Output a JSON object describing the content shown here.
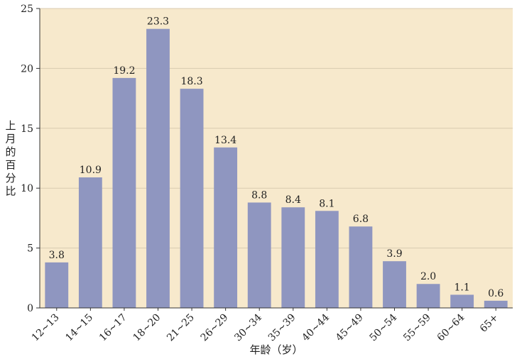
{
  "colors": {
    "plot_background": "#f7e9cc",
    "bar": "#8f96c0",
    "grid": "#d9cbb0",
    "axis": "#333333"
  },
  "chart_data": {
    "type": "bar",
    "categories": [
      "12~13",
      "14~15",
      "16~17",
      "18~20",
      "21~25",
      "26~29",
      "30~34",
      "35~39",
      "40~44",
      "45~49",
      "50~54",
      "55~59",
      "60~64",
      "65+"
    ],
    "values": [
      3.8,
      10.9,
      19.2,
      23.3,
      18.3,
      13.4,
      8.8,
      8.4,
      8.1,
      6.8,
      3.9,
      2.0,
      1.1,
      0.6
    ],
    "data_labels": [
      "3.8",
      "10.9",
      "19.2",
      "23.3",
      "18.3",
      "13.4",
      "8.8",
      "8.4",
      "8.1",
      "6.8",
      "3.9",
      "2.0",
      "1.1",
      "0.6"
    ],
    "xlabel": "年龄（岁）",
    "ylabel": "上月的百分比",
    "ylim": [
      0,
      25
    ],
    "yticks": [
      "0",
      "5",
      "10",
      "15",
      "20",
      "25"
    ],
    "grid": true,
    "legend": "none"
  }
}
